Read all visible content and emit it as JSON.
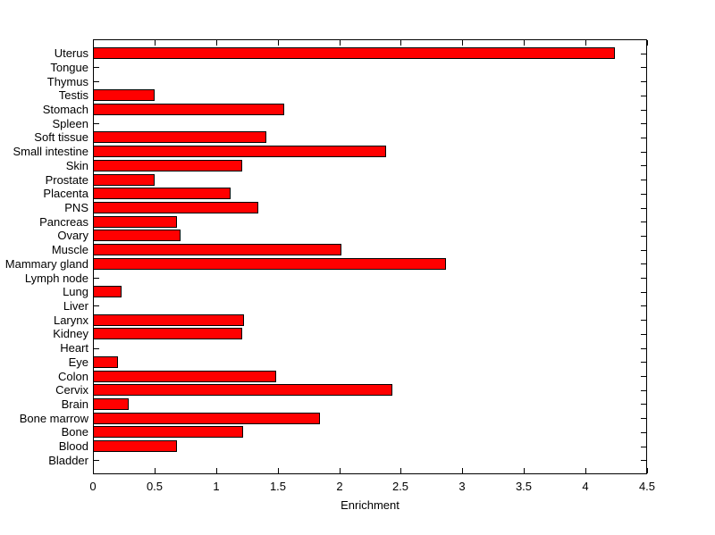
{
  "chart_data": {
    "type": "bar",
    "orientation": "horizontal",
    "title": "",
    "xlabel": "Enrichment",
    "ylabel": "",
    "categories": [
      "Uterus",
      "Tongue",
      "Thymus",
      "Testis",
      "Stomach",
      "Spleen",
      "Soft tissue",
      "Small intestine",
      "Skin",
      "Prostate",
      "Placenta",
      "PNS",
      "Pancreas",
      "Ovary",
      "Muscle",
      "Mammary gland",
      "Lymph node",
      "Lung",
      "Liver",
      "Larynx",
      "Kidney",
      "Heart",
      "Eye",
      "Colon",
      "Cervix",
      "Brain",
      "Bone marrow",
      "Bone",
      "Blood",
      "Bladder"
    ],
    "values": [
      4.24,
      0,
      0,
      0.5,
      1.55,
      0,
      1.41,
      2.38,
      1.21,
      0.5,
      1.12,
      1.34,
      0.68,
      0.71,
      2.02,
      2.87,
      0,
      0.23,
      0,
      1.23,
      1.21,
      0,
      0.2,
      1.49,
      2.43,
      0.29,
      1.84,
      1.22,
      0.68,
      0
    ],
    "xlim": [
      0,
      4.5
    ],
    "xticks": [
      0,
      0.5,
      1,
      1.5,
      2,
      2.5,
      3,
      3.5,
      4,
      4.5
    ],
    "xtick_labels": [
      "0",
      "0.5",
      "1",
      "1.5",
      "2",
      "2.5",
      "3",
      "3.5",
      "4",
      "4.5"
    ],
    "bar_color": "#FF0000",
    "bar_edge_color": "#000000",
    "axis_color": "#000000",
    "background_color": "#FFFFFF",
    "grid": false,
    "legend": null
  }
}
